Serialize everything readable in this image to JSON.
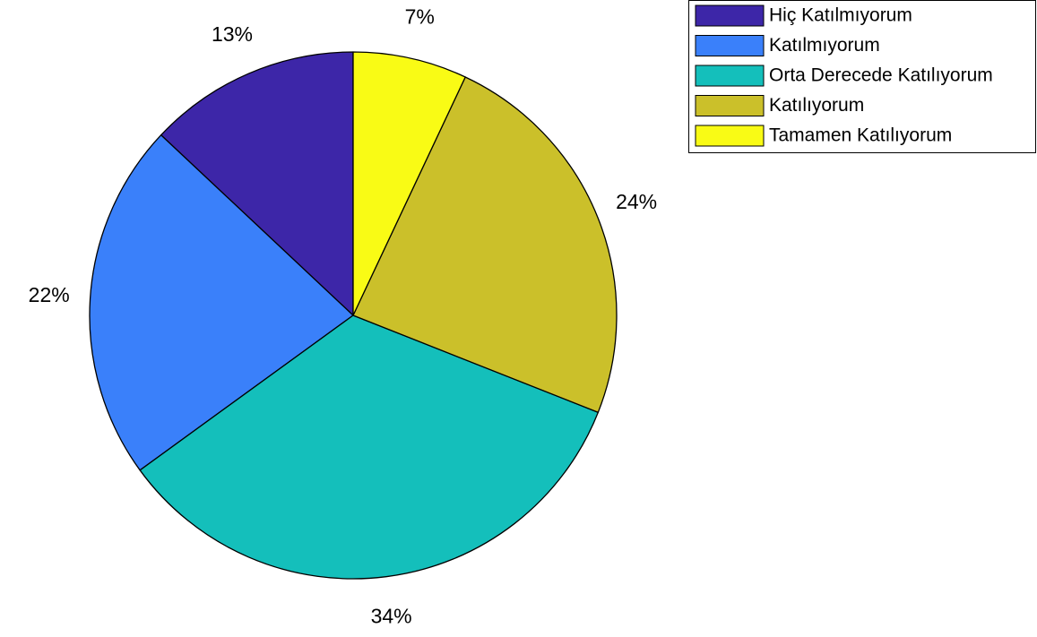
{
  "chart_data": {
    "type": "pie",
    "categories": [
      "Hiç Katılmıyorum",
      "Katılmıyorum",
      "Orta Derecede Katılıyorum",
      "Katılıyorum",
      "Tamamen Katılıyorum"
    ],
    "values": [
      13,
      22,
      34,
      24,
      7
    ],
    "labels": [
      "13%",
      "22%",
      "34%",
      "24%",
      "7%"
    ],
    "colors": [
      "#3d26a8",
      "#3a80fa",
      "#14bfbb",
      "#cbc02a",
      "#f9fb15"
    ],
    "direction": "counterclockwise",
    "start_angle_deg": 90,
    "legend_position": "top-right",
    "title": "",
    "xlabel": "",
    "ylabel": ""
  }
}
